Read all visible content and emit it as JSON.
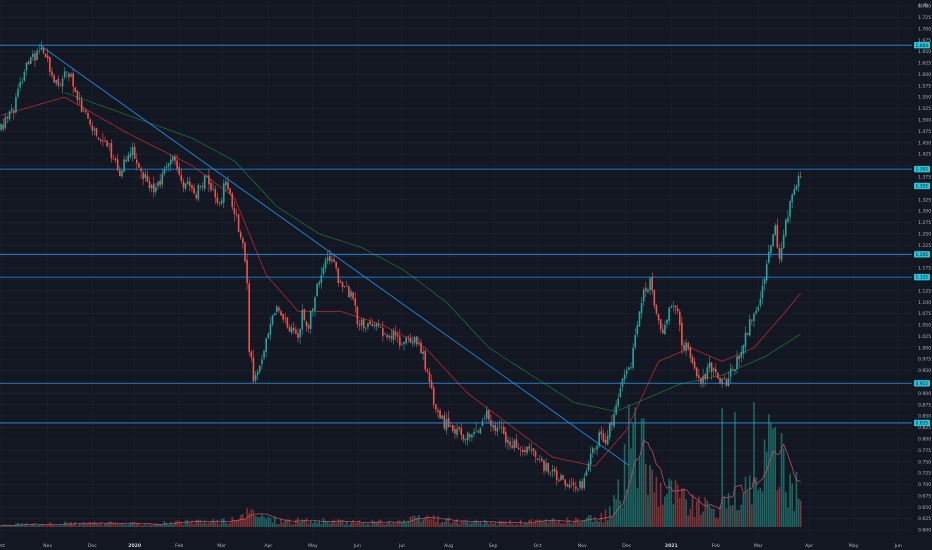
{
  "chart_data": {
    "type": "candlestick",
    "currency": "AUD",
    "colors": {
      "background": "#131722",
      "grid": "#1e2230",
      "up": "#26a69a",
      "down": "#ef5350",
      "levels": "#2196f3",
      "badge": "#26c6da",
      "ma_red": "#b22833",
      "ma_green": "#1c6b3a",
      "volume_ma": "#c9566a"
    },
    "y_axis": {
      "min": 0.6,
      "max": 1.75,
      "ticks": [
        "1.750",
        "1.725",
        "1.700",
        "1.675",
        "1.650",
        "1.625",
        "1.600",
        "1.575",
        "1.550",
        "1.525",
        "1.500",
        "1.475",
        "1.450",
        "1.425",
        "1.400",
        "1.375",
        "1.350",
        "1.325",
        "1.300",
        "1.275",
        "1.250",
        "1.225",
        "1.200",
        "1.175",
        "1.150",
        "1.125",
        "1.100",
        "1.075",
        "1.050",
        "1.025",
        "1.000",
        "0.975",
        "0.950",
        "0.925",
        "0.900",
        "0.875",
        "0.850",
        "0.825",
        "0.800",
        "0.775",
        "0.750",
        "0.725",
        "0.700",
        "0.675",
        "0.650",
        "0.625",
        "0.600"
      ]
    },
    "x_axis": {
      "labels": [
        {
          "text": "Oct",
          "bar": 0
        },
        {
          "text": "Nov",
          "bar": 22
        },
        {
          "text": "Dec",
          "bar": 43
        },
        {
          "text": "2020",
          "bar": 63,
          "bold": true
        },
        {
          "text": "Feb",
          "bar": 84
        },
        {
          "text": "Mar",
          "bar": 104
        },
        {
          "text": "Apr",
          "bar": 126
        },
        {
          "text": "May",
          "bar": 147
        },
        {
          "text": "Jun",
          "bar": 168
        },
        {
          "text": "Jul",
          "bar": 189
        },
        {
          "text": "Aug",
          "bar": 211
        },
        {
          "text": "Sep",
          "bar": 232
        },
        {
          "text": "Oct",
          "bar": 253
        },
        {
          "text": "Nov",
          "bar": 274
        },
        {
          "text": "Dec",
          "bar": 295
        },
        {
          "text": "2021",
          "bar": 316,
          "bold": true
        },
        {
          "text": "Feb",
          "bar": 337
        },
        {
          "text": "Mar",
          "bar": 357
        },
        {
          "text": "Apr",
          "bar": 381
        },
        {
          "text": "May",
          "bar": 402
        },
        {
          "text": "Jun",
          "bar": 423
        }
      ]
    },
    "total_bars": 430,
    "keypoints": [
      [
        0,
        1.48
      ],
      [
        6,
        1.53
      ],
      [
        12,
        1.62
      ],
      [
        19,
        1.655
      ],
      [
        23,
        1.61
      ],
      [
        27,
        1.57
      ],
      [
        30,
        1.6
      ],
      [
        33,
        1.6
      ],
      [
        38,
        1.52
      ],
      [
        44,
        1.47
      ],
      [
        50,
        1.44
      ],
      [
        56,
        1.39
      ],
      [
        62,
        1.43
      ],
      [
        67,
        1.38
      ],
      [
        72,
        1.35
      ],
      [
        78,
        1.39
      ],
      [
        82,
        1.42
      ],
      [
        86,
        1.36
      ],
      [
        92,
        1.34
      ],
      [
        97,
        1.37
      ],
      [
        102,
        1.31
      ],
      [
        106,
        1.36
      ],
      [
        111,
        1.28
      ],
      [
        114,
        1.22
      ],
      [
        116,
        1.15
      ],
      [
        117,
        1.0
      ],
      [
        118,
        0.975
      ],
      [
        119,
        0.93
      ],
      [
        121,
        0.955
      ],
      [
        124,
        1.0
      ],
      [
        127,
        1.06
      ],
      [
        130,
        1.08
      ],
      [
        133,
        1.06
      ],
      [
        136,
        1.04
      ],
      [
        139,
        1.02
      ],
      [
        142,
        1.07
      ],
      [
        145,
        1.05
      ],
      [
        148,
        1.11
      ],
      [
        152,
        1.18
      ],
      [
        156,
        1.2
      ],
      [
        159,
        1.15
      ],
      [
        162,
        1.14
      ],
      [
        165,
        1.11
      ],
      [
        168,
        1.06
      ],
      [
        172,
        1.05
      ],
      [
        175,
        1.05
      ],
      [
        178,
        1.04
      ],
      [
        182,
        1.03
      ],
      [
        186,
        1.02
      ],
      [
        190,
        1.01
      ],
      [
        193,
        1.02
      ],
      [
        197,
        1.015
      ],
      [
        200,
        0.96
      ],
      [
        204,
        0.88
      ],
      [
        208,
        0.84
      ],
      [
        212,
        0.82
      ],
      [
        217,
        0.81
      ],
      [
        221,
        0.8
      ],
      [
        225,
        0.82
      ],
      [
        228,
        0.86
      ],
      [
        232,
        0.83
      ],
      [
        237,
        0.81
      ],
      [
        242,
        0.79
      ],
      [
        246,
        0.78
      ],
      [
        252,
        0.77
      ],
      [
        256,
        0.74
      ],
      [
        261,
        0.72
      ],
      [
        265,
        0.71
      ],
      [
        270,
        0.69
      ],
      [
        274,
        0.7
      ],
      [
        278,
        0.76
      ],
      [
        282,
        0.81
      ],
      [
        285,
        0.79
      ],
      [
        288,
        0.84
      ],
      [
        291,
        0.88
      ],
      [
        294,
        0.94
      ],
      [
        297,
        0.96
      ],
      [
        300,
        1.05
      ],
      [
        303,
        1.12
      ],
      [
        306,
        1.15
      ],
      [
        309,
        1.07
      ],
      [
        312,
        1.03
      ],
      [
        315,
        1.08
      ],
      [
        318,
        1.1
      ],
      [
        321,
        1.02
      ],
      [
        324,
        0.99
      ],
      [
        327,
        0.95
      ],
      [
        330,
        0.92
      ],
      [
        334,
        0.97
      ],
      [
        338,
        0.93
      ],
      [
        342,
        0.925
      ],
      [
        346,
        0.96
      ],
      [
        350,
        1.0
      ],
      [
        353,
        1.06
      ],
      [
        356,
        1.08
      ],
      [
        359,
        1.13
      ],
      [
        362,
        1.22
      ],
      [
        365,
        1.26
      ],
      [
        367,
        1.2
      ],
      [
        370,
        1.28
      ],
      [
        373,
        1.34
      ],
      [
        375,
        1.36
      ],
      [
        377,
        1.375
      ]
    ],
    "volume_keypoints": [
      [
        0,
        0.02
      ],
      [
        30,
        0.03
      ],
      [
        60,
        0.03
      ],
      [
        90,
        0.04
      ],
      [
        110,
        0.06
      ],
      [
        118,
        0.12
      ],
      [
        130,
        0.06
      ],
      [
        150,
        0.05
      ],
      [
        170,
        0.04
      ],
      [
        190,
        0.05
      ],
      [
        200,
        0.08
      ],
      [
        220,
        0.04
      ],
      [
        240,
        0.04
      ],
      [
        260,
        0.05
      ],
      [
        275,
        0.06
      ],
      [
        285,
        0.1
      ],
      [
        292,
        0.3
      ],
      [
        296,
        0.65
      ],
      [
        300,
        0.85
      ],
      [
        305,
        0.5
      ],
      [
        310,
        0.4
      ],
      [
        318,
        0.3
      ],
      [
        325,
        0.2
      ],
      [
        335,
        0.15
      ],
      [
        345,
        0.2
      ],
      [
        355,
        0.35
      ],
      [
        360,
        0.6
      ],
      [
        365,
        0.7
      ],
      [
        370,
        0.4
      ],
      [
        377,
        0.3
      ]
    ],
    "volume_spikes": [
      [
        296,
        0.98
      ],
      [
        340,
        0.95
      ],
      [
        346,
        0.92
      ],
      [
        355,
        1.0
      ],
      [
        360,
        0.7
      ],
      [
        365,
        0.8
      ]
    ],
    "ma_red": [
      [
        0,
        1.51
      ],
      [
        30,
        1.55
      ],
      [
        60,
        1.47
      ],
      [
        90,
        1.4
      ],
      [
        110,
        1.33
      ],
      [
        125,
        1.16
      ],
      [
        140,
        1.08
      ],
      [
        160,
        1.08
      ],
      [
        180,
        1.05
      ],
      [
        200,
        1.0
      ],
      [
        220,
        0.9
      ],
      [
        240,
        0.83
      ],
      [
        260,
        0.76
      ],
      [
        280,
        0.74
      ],
      [
        295,
        0.82
      ],
      [
        310,
        0.97
      ],
      [
        325,
        1.0
      ],
      [
        340,
        0.97
      ],
      [
        355,
        1.0
      ],
      [
        370,
        1.08
      ],
      [
        377,
        1.12
      ]
    ],
    "ma_green": [
      [
        30,
        1.56
      ],
      [
        60,
        1.51
      ],
      [
        90,
        1.46
      ],
      [
        110,
        1.41
      ],
      [
        130,
        1.31
      ],
      [
        150,
        1.25
      ],
      [
        170,
        1.22
      ],
      [
        190,
        1.17
      ],
      [
        210,
        1.1
      ],
      [
        230,
        1.0
      ],
      [
        250,
        0.94
      ],
      [
        270,
        0.88
      ],
      [
        290,
        0.86
      ],
      [
        305,
        0.89
      ],
      [
        320,
        0.92
      ],
      [
        340,
        0.94
      ],
      [
        360,
        0.98
      ],
      [
        377,
        1.03
      ]
    ],
    "trendline": {
      "from": [
        18,
        1.665
      ],
      "to": [
        296,
        0.742
      ]
    },
    "levels": [
      {
        "price": 1.664,
        "badge": "1.664"
      },
      {
        "price": 1.392,
        "badge": "1.392"
      },
      {
        "price": 1.205,
        "badge": "1.205"
      },
      {
        "price": 1.155,
        "badge": "1.155"
      },
      {
        "price": 0.922,
        "badge": "0.922"
      },
      {
        "price": 0.835,
        "badge": "0.835"
      }
    ],
    "current_price": {
      "price": 1.355,
      "badge": "1.355"
    }
  }
}
